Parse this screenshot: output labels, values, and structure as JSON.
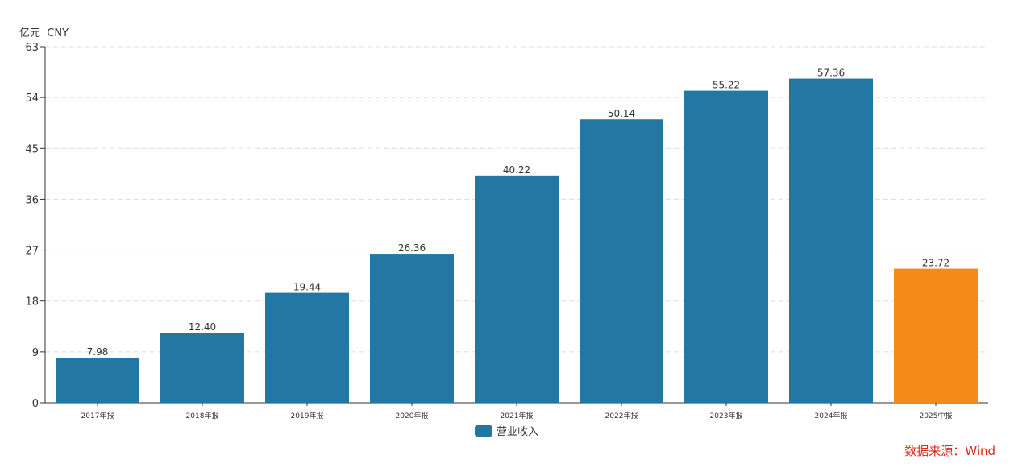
{
  "chart": {
    "unit_label": "亿元  CNY",
    "source_note": "数据来源：Wind"
  },
  "chart_data": {
    "type": "bar",
    "title": "",
    "xlabel": "",
    "ylabel": "亿元  CNY",
    "ylim": [
      0,
      63
    ],
    "yticks": [
      0,
      9,
      18,
      27,
      36,
      45,
      54,
      63
    ],
    "grid": true,
    "legend_position": "bottom-center",
    "categories": [
      "2017年报",
      "2018年报",
      "2019年报",
      "2020年报",
      "2021年报",
      "2022年报",
      "2023年报",
      "2024年报",
      "2025中报"
    ],
    "series": [
      {
        "name": "营业收入",
        "values": [
          7.98,
          12.4,
          19.44,
          26.36,
          40.22,
          50.14,
          55.22,
          57.36,
          23.72
        ],
        "value_labels": [
          "7.98",
          "12.40",
          "19.44",
          "26.36",
          "40.22",
          "50.14",
          "55.22",
          "57.36",
          "23.72"
        ],
        "color": "#2277a3",
        "highlight_index": 8,
        "highlight_color": "#f5891a"
      }
    ]
  }
}
